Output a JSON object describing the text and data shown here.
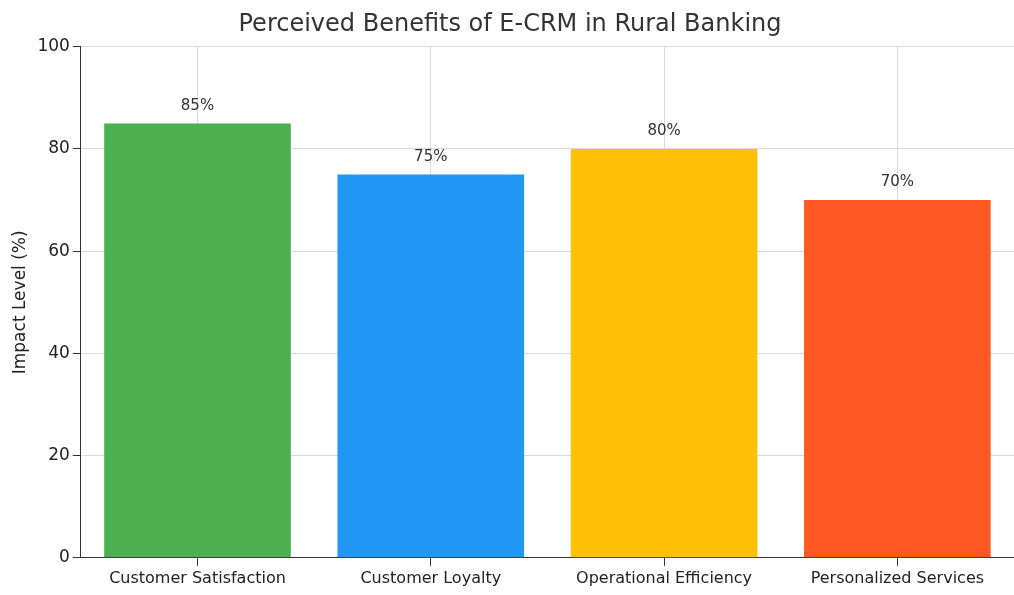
{
  "chart_data": {
    "type": "bar",
    "title": "Perceived Benefits of E-CRM in Rural Banking",
    "ylabel": "Impact Level (%)",
    "categories": [
      "Customer Satisfaction",
      "Customer Loyalty",
      "Operational Efficiency",
      "Personalized Services"
    ],
    "values": [
      85,
      75,
      80,
      70
    ],
    "colors": [
      "#4caf50",
      "#2196f3",
      "#ffc107",
      "#ff5722"
    ],
    "value_labels": [
      "85%",
      "75%",
      "80%",
      "70%"
    ],
    "ylim": [
      0,
      100
    ],
    "yticks": [
      0,
      20,
      40,
      60,
      80,
      100
    ],
    "grid": true
  }
}
